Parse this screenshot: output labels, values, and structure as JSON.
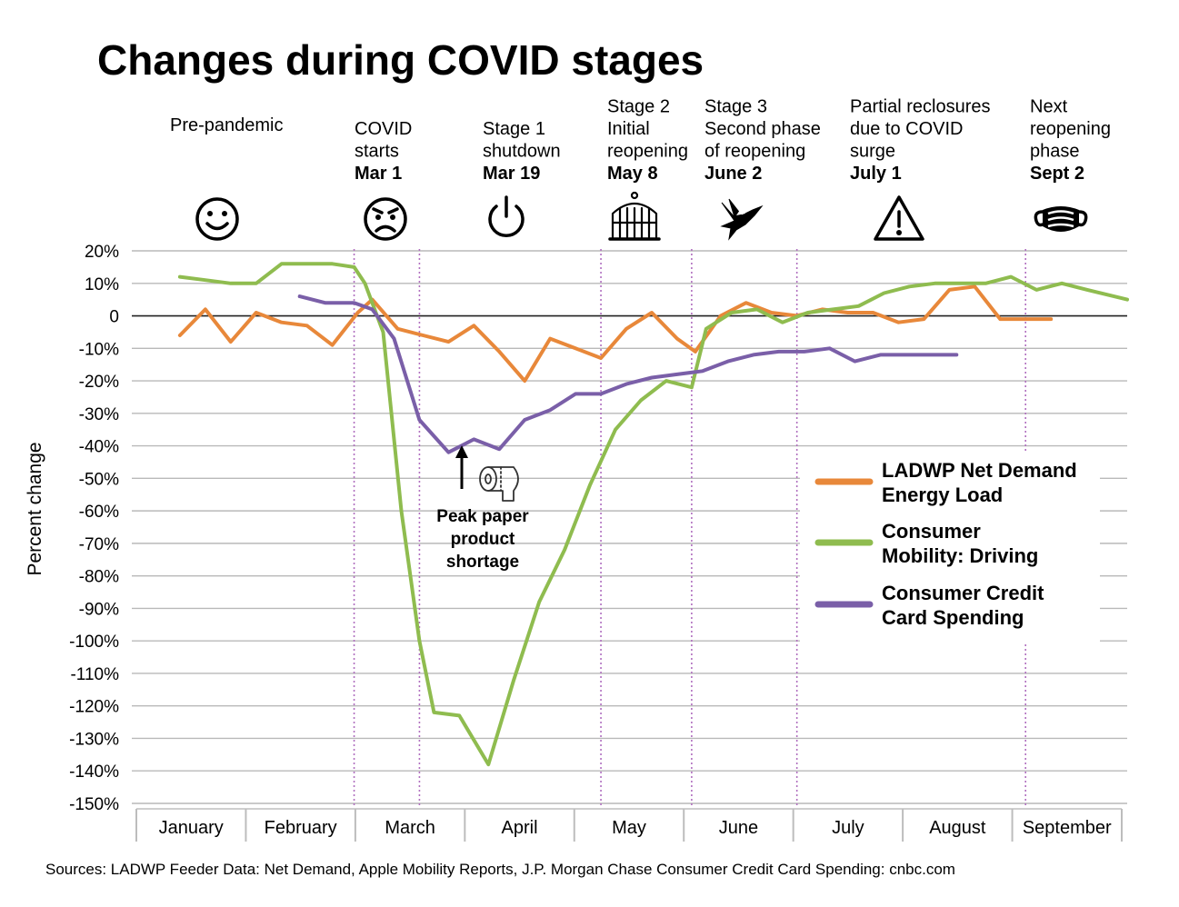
{
  "chart_data": {
    "type": "line",
    "title": "Changes during COVID stages",
    "ylabel": "Percent change",
    "xlabel": "",
    "ylim": [
      -150,
      20
    ],
    "yticks": [
      20,
      10,
      0,
      -10,
      -20,
      -30,
      -40,
      -50,
      -60,
      -70,
      -80,
      -90,
      -100,
      -110,
      -120,
      -130,
      -140,
      -150
    ],
    "ytick_labels": [
      "20%",
      "10%",
      "0",
      "-10%",
      "-20%",
      "-30%",
      "-40%",
      "-50%",
      "-60%",
      "-70%",
      "-80%",
      "-90%",
      "-100%",
      "-110%",
      "-120%",
      "-130%",
      "-140%",
      "-150%"
    ],
    "x_start": "2020-01-01",
    "x_end": "2020-09-30",
    "months": [
      "January",
      "February",
      "March",
      "April",
      "May",
      "June",
      "July",
      "August",
      "September"
    ],
    "grid": true,
    "legend_position": "right",
    "stages": [
      {
        "lines": [
          "Pre-pandemic"
        ],
        "date_label": "",
        "icon": "smiley-icon",
        "date": ""
      },
      {
        "lines": [
          "COVID",
          "starts"
        ],
        "date_label": "Mar 1",
        "icon": "angry-face-icon",
        "date": "2020-03-01"
      },
      {
        "lines": [
          "Stage 1",
          "shutdown"
        ],
        "date_label": "Mar 19",
        "icon": "power-icon",
        "date": "2020-03-19"
      },
      {
        "lines": [
          "Stage 2",
          "Initial",
          "reopening"
        ],
        "date_label": "May 8",
        "icon": "birdcage-icon",
        "date": "2020-05-08"
      },
      {
        "lines": [
          "Stage 3",
          "Second phase",
          "of reopening"
        ],
        "date_label": "June 2",
        "icon": "dove-icon",
        "date": "2020-06-02"
      },
      {
        "lines": [
          "Partial reclosures",
          "due to COVID",
          "surge"
        ],
        "date_label": "July 1",
        "icon": "warning-icon",
        "date": "2020-07-01"
      },
      {
        "lines": [
          "Next",
          "reopening",
          "phase"
        ],
        "date_label": "Sept 2",
        "icon": "face-mask-icon",
        "date": "2020-09-02"
      }
    ],
    "series": [
      {
        "name": "LADWP Net Demand Energy Load",
        "legend_lines": [
          "LADWP Net Demand",
          "Energy Load"
        ],
        "color": "#e8883a",
        "points": [
          [
            "2020-01-13",
            -6
          ],
          [
            "2020-01-20",
            2
          ],
          [
            "2020-01-27",
            -8
          ],
          [
            "2020-02-03",
            1
          ],
          [
            "2020-02-10",
            -2
          ],
          [
            "2020-02-17",
            -3
          ],
          [
            "2020-02-24",
            -9
          ],
          [
            "2020-03-02",
            1
          ],
          [
            "2020-03-06",
            5
          ],
          [
            "2020-03-13",
            -4
          ],
          [
            "2020-03-20",
            -6
          ],
          [
            "2020-03-27",
            -8
          ],
          [
            "2020-04-03",
            -3
          ],
          [
            "2020-04-10",
            -11
          ],
          [
            "2020-04-17",
            -20
          ],
          [
            "2020-04-24",
            -7
          ],
          [
            "2020-05-01",
            -10
          ],
          [
            "2020-05-08",
            -13
          ],
          [
            "2020-05-15",
            -4
          ],
          [
            "2020-05-22",
            1
          ],
          [
            "2020-05-29",
            -7
          ],
          [
            "2020-06-03",
            -11
          ],
          [
            "2020-06-10",
            0
          ],
          [
            "2020-06-17",
            4
          ],
          [
            "2020-06-24",
            1
          ],
          [
            "2020-07-01",
            0
          ],
          [
            "2020-07-08",
            2
          ],
          [
            "2020-07-15",
            1
          ],
          [
            "2020-07-22",
            1
          ],
          [
            "2020-07-29",
            -2
          ],
          [
            "2020-08-05",
            -1
          ],
          [
            "2020-08-12",
            8
          ],
          [
            "2020-08-19",
            9
          ],
          [
            "2020-08-26",
            -1
          ],
          [
            "2020-09-02",
            -1
          ],
          [
            "2020-09-09",
            -1
          ]
        ]
      },
      {
        "name": "Consumer Mobility: Driving",
        "legend_lines": [
          "Consumer",
          "Mobility: Driving"
        ],
        "color": "#8fbc4f",
        "points": [
          [
            "2020-01-13",
            12
          ],
          [
            "2020-01-20",
            11
          ],
          [
            "2020-01-27",
            10
          ],
          [
            "2020-02-03",
            10
          ],
          [
            "2020-02-10",
            16
          ],
          [
            "2020-02-17",
            16
          ],
          [
            "2020-02-24",
            16
          ],
          [
            "2020-03-01",
            15
          ],
          [
            "2020-03-04",
            10
          ],
          [
            "2020-03-09",
            -5
          ],
          [
            "2020-03-14",
            -60
          ],
          [
            "2020-03-19",
            -100
          ],
          [
            "2020-03-23",
            -122
          ],
          [
            "2020-03-30",
            -123
          ],
          [
            "2020-04-07",
            -138
          ],
          [
            "2020-04-14",
            -112
          ],
          [
            "2020-04-21",
            -88
          ],
          [
            "2020-04-28",
            -72
          ],
          [
            "2020-05-05",
            -52
          ],
          [
            "2020-05-12",
            -35
          ],
          [
            "2020-05-19",
            -26
          ],
          [
            "2020-05-26",
            -20
          ],
          [
            "2020-06-02",
            -22
          ],
          [
            "2020-06-06",
            -4
          ],
          [
            "2020-06-13",
            1
          ],
          [
            "2020-06-20",
            2
          ],
          [
            "2020-06-27",
            -2
          ],
          [
            "2020-07-04",
            1
          ],
          [
            "2020-07-11",
            2
          ],
          [
            "2020-07-18",
            3
          ],
          [
            "2020-07-25",
            7
          ],
          [
            "2020-08-01",
            9
          ],
          [
            "2020-08-08",
            10
          ],
          [
            "2020-08-15",
            10
          ],
          [
            "2020-08-22",
            10
          ],
          [
            "2020-08-29",
            12
          ],
          [
            "2020-09-05",
            8
          ],
          [
            "2020-09-12",
            10
          ],
          [
            "2020-09-19",
            8
          ],
          [
            "2020-09-30",
            5
          ]
        ]
      },
      {
        "name": "Consumer Credit Card Spending",
        "legend_lines": [
          "Consumer Credit",
          "Card Spending"
        ],
        "color": "#7a5fa8",
        "points": [
          [
            "2020-02-15",
            6
          ],
          [
            "2020-02-22",
            4
          ],
          [
            "2020-03-01",
            4
          ],
          [
            "2020-03-06",
            2
          ],
          [
            "2020-03-12",
            -7
          ],
          [
            "2020-03-19",
            -32
          ],
          [
            "2020-03-27",
            -42
          ],
          [
            "2020-04-03",
            -38
          ],
          [
            "2020-04-10",
            -41
          ],
          [
            "2020-04-17",
            -32
          ],
          [
            "2020-04-24",
            -29
          ],
          [
            "2020-05-01",
            -24
          ],
          [
            "2020-05-08",
            -24
          ],
          [
            "2020-05-15",
            -21
          ],
          [
            "2020-05-22",
            -19
          ],
          [
            "2020-05-29",
            -18
          ],
          [
            "2020-06-05",
            -17
          ],
          [
            "2020-06-12",
            -14
          ],
          [
            "2020-06-19",
            -12
          ],
          [
            "2020-06-26",
            -11
          ],
          [
            "2020-07-03",
            -11
          ],
          [
            "2020-07-10",
            -10
          ],
          [
            "2020-07-17",
            -14
          ],
          [
            "2020-07-24",
            -12
          ],
          [
            "2020-07-31",
            -12
          ],
          [
            "2020-08-07",
            -12
          ],
          [
            "2020-08-14",
            -12
          ]
        ]
      }
    ],
    "annotation": {
      "lines": [
        "Peak paper",
        "product",
        "shortage"
      ],
      "date": "2020-04-03",
      "value": -40,
      "icon": "toilet-paper-icon"
    },
    "source": "Sources: LADWP Feeder Data: Net Demand, Apple Mobility Reports, J.P. Morgan Chase Consumer Credit Card Spending: cnbc.com"
  }
}
